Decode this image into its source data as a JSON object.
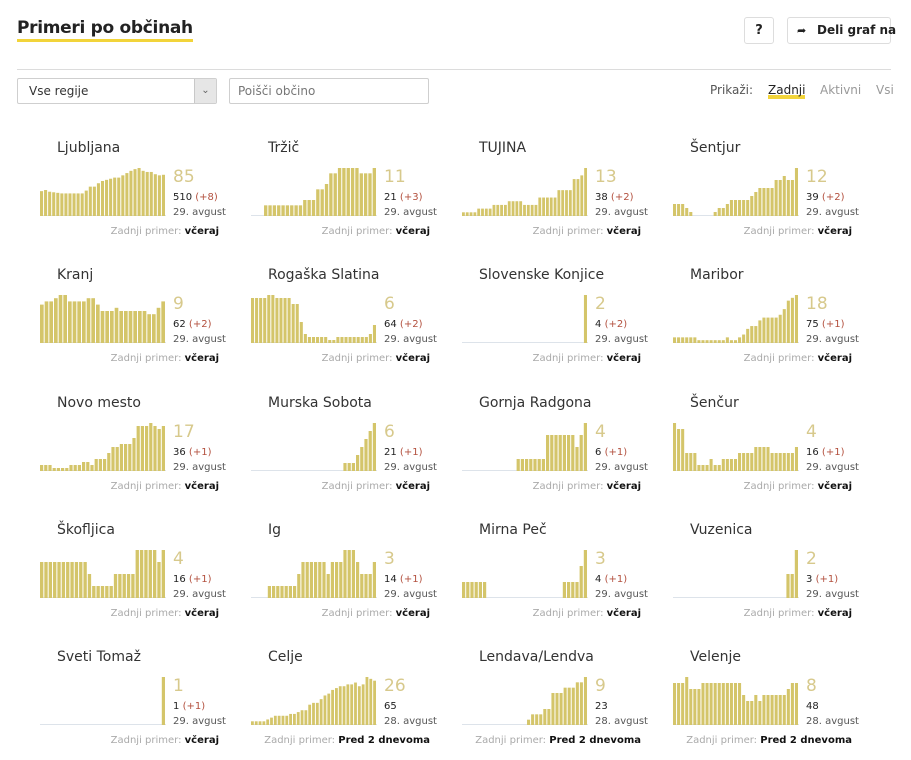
{
  "header": {
    "title": "Primeri po občinah",
    "help_label": "?",
    "share_label": "Deli graf na",
    "share_icon": "share-arrow-icon"
  },
  "filters": {
    "region_selected": "Vse regije",
    "search_placeholder": "Poišči občino",
    "show_label": "Prikaži:",
    "show_options": [
      "Zadnji",
      "Aktivni",
      "Vsi"
    ],
    "show_active": "Zadnji"
  },
  "colors": {
    "bar": "#d4c56a",
    "big_number": "#d7c98c",
    "delta": "#b3513f",
    "accent_underline": "#f2d43a"
  },
  "last_case_label": "Zadnji primer:",
  "chart_data": {
    "type": "bar",
    "title": "Primeri po občinah",
    "municipalities": [
      {
        "name": "Ljubljana",
        "active": "85",
        "total": "510",
        "delta": "(+8)",
        "date": "29. avgust",
        "last": "včeraj",
        "values": [
          44,
          46,
          43,
          42,
          41,
          40,
          40,
          40,
          40,
          40,
          40,
          45,
          52,
          52,
          58,
          62,
          64,
          66,
          68,
          68,
          72,
          76,
          80,
          83,
          85,
          80,
          78,
          78,
          74,
          72,
          73
        ]
      },
      {
        "name": "Tržič",
        "active": "11",
        "total": "21",
        "delta": "(+3)",
        "date": "29. avgust",
        "last": "včeraj",
        "values": [
          0,
          0,
          0,
          2,
          2,
          2,
          2,
          2,
          2,
          2,
          2,
          2,
          3,
          3,
          3,
          5,
          5,
          6,
          8,
          8,
          9,
          9,
          9,
          9,
          9,
          8,
          8,
          8,
          9
        ]
      },
      {
        "name": "TUJINA",
        "active": "13",
        "total": "38",
        "delta": "(+2)",
        "date": "29. avgust",
        "last": "včeraj",
        "values": [
          1,
          1,
          1,
          1,
          2,
          2,
          2,
          2,
          3,
          3,
          3,
          3,
          4,
          4,
          4,
          4,
          3,
          3,
          3,
          3,
          5,
          5,
          5,
          5,
          5,
          7,
          7,
          7,
          7,
          10,
          10,
          11,
          13
        ]
      },
      {
        "name": "Šentjur",
        "active": "12",
        "total": "39",
        "delta": "(+2)",
        "date": "29. avgust",
        "last": "včeraj",
        "values": [
          3,
          3,
          3,
          2,
          1,
          0,
          0,
          0,
          0,
          0,
          1,
          2,
          2,
          3,
          4,
          4,
          4,
          4,
          4,
          5,
          6,
          7,
          7,
          7,
          7,
          9,
          9,
          10,
          9,
          9,
          12
        ]
      },
      {
        "name": "Kranj",
        "active": "9",
        "total": "62",
        "delta": "(+2)",
        "date": "29. avgust",
        "last": "včeraj",
        "values": [
          12,
          13,
          13,
          14,
          15,
          15,
          13,
          13,
          13,
          13,
          14,
          14,
          12,
          10,
          10,
          10,
          11,
          10,
          10,
          10,
          10,
          10,
          10,
          9,
          9,
          11,
          13
        ]
      },
      {
        "name": "Rogaška Slatina",
        "active": "6",
        "total": "64",
        "delta": "(+2)",
        "date": "29. avgust",
        "last": "včeraj",
        "values": [
          15,
          15,
          15,
          15,
          16,
          16,
          15,
          15,
          15,
          15,
          13,
          13,
          7,
          3,
          2,
          2,
          2,
          2,
          2,
          1,
          1,
          2,
          2,
          2,
          2,
          2,
          2,
          2,
          2,
          3,
          6
        ]
      },
      {
        "name": "Slovenske Konjice",
        "active": "2",
        "total": "4",
        "delta": "(+2)",
        "date": "29. avgust",
        "last": "včeraj",
        "values": [
          0,
          0,
          0,
          0,
          0,
          0,
          0,
          0,
          0,
          0,
          0,
          0,
          0,
          0,
          0,
          0,
          0,
          0,
          0,
          0,
          0,
          0,
          0,
          0,
          0,
          0,
          0,
          0,
          0,
          0,
          2
        ]
      },
      {
        "name": "Maribor",
        "active": "18",
        "total": "75",
        "delta": "(+1)",
        "date": "29. avgust",
        "last": "včeraj",
        "values": [
          2,
          2,
          2,
          2,
          2,
          2,
          1,
          1,
          1,
          1,
          1,
          1,
          1,
          2,
          1,
          1,
          2,
          3,
          5,
          6,
          6,
          8,
          9,
          9,
          9,
          9,
          10,
          12,
          15,
          16,
          17
        ]
      },
      {
        "name": "Novo mesto",
        "active": "17",
        "total": "36",
        "delta": "(+1)",
        "date": "29. avgust",
        "last": "včeraj",
        "values": [
          2,
          2,
          2,
          1,
          1,
          1,
          1,
          2,
          2,
          2,
          3,
          3,
          2,
          4,
          4,
          4,
          6,
          8,
          8,
          9,
          9,
          9,
          11,
          15,
          15,
          15,
          16,
          15,
          14,
          15
        ]
      },
      {
        "name": "Murska Sobota",
        "active": "6",
        "total": "21",
        "delta": "(+1)",
        "date": "29. avgust",
        "last": "včeraj",
        "values": [
          0,
          0,
          0,
          0,
          0,
          0,
          0,
          0,
          0,
          0,
          0,
          0,
          0,
          0,
          0,
          0,
          0,
          0,
          0,
          0,
          0,
          0,
          1,
          1,
          1,
          2,
          3,
          4,
          5,
          6
        ]
      },
      {
        "name": "Gornja Radgona",
        "active": "4",
        "total": "6",
        "delta": "(+1)",
        "date": "29. avgust",
        "last": "včeraj",
        "values": [
          0,
          0,
          0,
          0,
          0,
          0,
          0,
          0,
          0,
          0,
          0,
          0,
          0,
          1,
          1,
          1,
          1,
          1,
          1,
          1,
          3,
          3,
          3,
          3,
          3,
          3,
          3,
          2,
          3,
          4
        ]
      },
      {
        "name": "Šenčur",
        "active": "4",
        "total": "16",
        "delta": "(+1)",
        "date": "29. avgust",
        "last": "včeraj",
        "values": [
          8,
          7,
          7,
          3,
          3,
          3,
          1,
          1,
          1,
          2,
          1,
          1,
          2,
          2,
          2,
          2,
          3,
          3,
          3,
          3,
          4,
          4,
          4,
          4,
          3,
          3,
          3,
          3,
          3,
          3,
          4
        ]
      },
      {
        "name": "Škofljica",
        "active": "4",
        "total": "16",
        "delta": "(+1)",
        "date": "29. avgust",
        "last": "včeraj",
        "values": [
          3,
          3,
          3,
          3,
          3,
          3,
          3,
          3,
          3,
          3,
          3,
          2,
          1,
          1,
          1,
          1,
          1,
          2,
          2,
          2,
          2,
          2,
          4,
          4,
          4,
          4,
          4,
          3,
          4
        ]
      },
      {
        "name": "Ig",
        "active": "3",
        "total": "14",
        "delta": "(+1)",
        "date": "29. avgust",
        "last": "včeraj",
        "values": [
          0,
          0,
          0,
          0,
          1,
          1,
          1,
          1,
          1,
          1,
          1,
          2,
          3,
          3,
          3,
          3,
          3,
          3,
          2,
          3,
          3,
          3,
          4,
          4,
          4,
          3,
          2,
          2,
          2,
          3
        ]
      },
      {
        "name": "Mirna Peč",
        "active": "3",
        "total": "4",
        "delta": "(+1)",
        "date": "29. avgust",
        "last": "včeraj",
        "values": [
          1,
          1,
          1,
          1,
          1,
          1,
          0,
          0,
          0,
          0,
          0,
          0,
          0,
          0,
          0,
          0,
          0,
          0,
          0,
          0,
          0,
          0,
          0,
          0,
          1,
          1,
          1,
          1,
          2,
          3
        ]
      },
      {
        "name": "Vuzenica",
        "active": "2",
        "total": "3",
        "delta": "(+1)",
        "date": "29. avgust",
        "last": "včeraj",
        "values": [
          0,
          0,
          0,
          0,
          0,
          0,
          0,
          0,
          0,
          0,
          0,
          0,
          0,
          0,
          0,
          0,
          0,
          0,
          0,
          0,
          0,
          0,
          0,
          0,
          0,
          0,
          0,
          1,
          1,
          2
        ]
      },
      {
        "name": "Sveti Tomaž",
        "active": "1",
        "total": "1",
        "delta": "(+1)",
        "date": "29. avgust",
        "last": "včeraj",
        "values": [
          0,
          0,
          0,
          0,
          0,
          0,
          0,
          0,
          0,
          0,
          0,
          0,
          0,
          0,
          0,
          0,
          0,
          0,
          0,
          0,
          0,
          0,
          0,
          0,
          0,
          0,
          0,
          0,
          0,
          1
        ]
      },
      {
        "name": "Celje",
        "active": "26",
        "total": "65",
        "delta": "",
        "date": "28. avgust",
        "last": "Pred 2 dnevoma",
        "values": [
          2,
          2,
          2,
          2,
          3,
          4,
          5,
          5,
          5,
          5,
          6,
          6,
          7,
          8,
          8,
          11,
          12,
          12,
          14,
          16,
          17,
          19,
          20,
          21,
          21,
          22,
          22,
          23,
          21,
          22,
          26,
          25,
          24
        ]
      },
      {
        "name": "Lendava/Lendva",
        "active": "9",
        "total": "23",
        "delta": "",
        "date": "28. avgust",
        "last": "Pred 2 dnevoma",
        "values": [
          0,
          0,
          0,
          0,
          0,
          0,
          0,
          0,
          0,
          0,
          0,
          0,
          0,
          0,
          0,
          0,
          1,
          2,
          2,
          2,
          3,
          3,
          6,
          6,
          6,
          7,
          7,
          7,
          8,
          8,
          9
        ]
      },
      {
        "name": "Velenje",
        "active": "8",
        "total": "48",
        "delta": "",
        "date": "28. avgust",
        "last": "Pred 2 dnevoma",
        "values": [
          7,
          7,
          7,
          8,
          6,
          6,
          6,
          7,
          7,
          7,
          7,
          7,
          7,
          7,
          7,
          7,
          7,
          5,
          4,
          4,
          5,
          4,
          5,
          5,
          5,
          5,
          5,
          5,
          6,
          7,
          7
        ]
      }
    ]
  }
}
